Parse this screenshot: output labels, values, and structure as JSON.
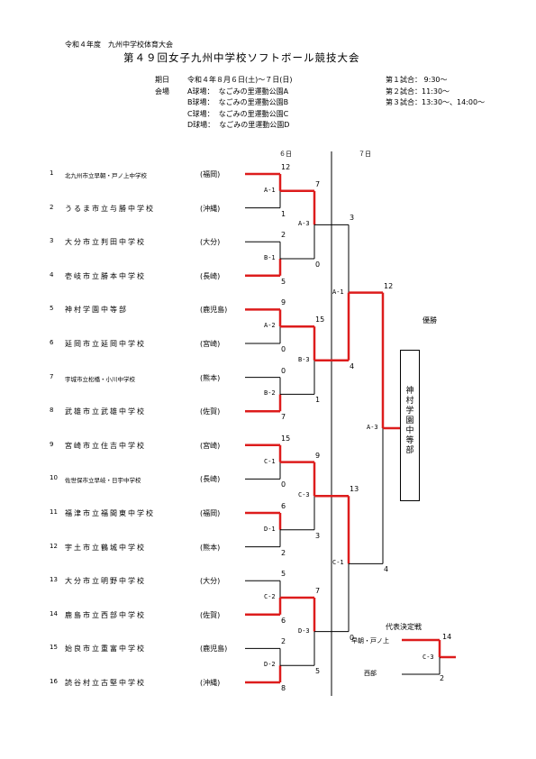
{
  "header": {
    "line1": "令和４年度　九州中学校体育大会",
    "title": "第４９回女子九州中学校ソフトボール競技大会"
  },
  "info": {
    "period_label": "期日",
    "period_value": "令和４年８月６日(土)～７日(日)",
    "venue_label": "会場",
    "venues": [
      {
        "label": "A球場：",
        "name": "なごみの里運動公園A"
      },
      {
        "label": "B球場：",
        "name": "なごみの里運動公園B"
      },
      {
        "label": "C球場：",
        "name": "なごみの里運動公園C"
      },
      {
        "label": "D球場：",
        "name": "なごみの里運動公園D"
      }
    ],
    "schedule": [
      "第１試合： 9:30～",
      "第２試合：11:30～",
      "第３試合：13:30～、14:00～"
    ]
  },
  "days": [
    "６日",
    "７日"
  ],
  "teams": [
    {
      "no": "1",
      "name": "北九州市立早朝・戸ノ上中学校",
      "pref": "(福岡)",
      "small": true
    },
    {
      "no": "2",
      "name": "うるま市立与勝中学校",
      "pref": "(沖縄)",
      "small": false
    },
    {
      "no": "3",
      "name": "大分市立判田中学校",
      "pref": "(大分)",
      "small": false
    },
    {
      "no": "4",
      "name": "壱岐市立勝本中学校",
      "pref": "(長崎)",
      "small": false
    },
    {
      "no": "5",
      "name": "神村学園中等部",
      "pref": "(鹿児島)",
      "small": false
    },
    {
      "no": "6",
      "name": "延岡市立延岡中学校",
      "pref": "(宮崎)",
      "small": false
    },
    {
      "no": "7",
      "name": "宇城市立松橋・小川中学校",
      "pref": "(熊本)",
      "small": true
    },
    {
      "no": "8",
      "name": "武雄市立武雄中学校",
      "pref": "(佐賀)",
      "small": false
    },
    {
      "no": "9",
      "name": "宮崎市立住吉中学校",
      "pref": "(宮崎)",
      "small": false
    },
    {
      "no": "10",
      "name": "佐世保市立早岐・日宇中学校",
      "pref": "(長崎)",
      "small": true
    },
    {
      "no": "11",
      "name": "福津市立福間東中学校",
      "pref": "(福岡)",
      "small": false
    },
    {
      "no": "12",
      "name": "宇土市立鶴城中学校",
      "pref": "(熊本)",
      "small": false
    },
    {
      "no": "13",
      "name": "大分市立明野中学校",
      "pref": "(大分)",
      "small": false
    },
    {
      "no": "14",
      "name": "鹿島市立西部中学校",
      "pref": "(佐賀)",
      "small": false
    },
    {
      "no": "15",
      "name": "始良市立重富中学校",
      "pref": "(鹿児島)",
      "small": false
    },
    {
      "no": "16",
      "name": "読谷村立古堅中学校",
      "pref": "(沖縄)",
      "small": false
    }
  ],
  "matches": [
    {
      "id": "r1-1",
      "label": "A-1",
      "top": 0,
      "bottom": 1,
      "top_score": "12",
      "bottom_score": "1",
      "winner": "top"
    },
    {
      "id": "r1-2",
      "label": "B-1",
      "top": 2,
      "bottom": 3,
      "top_score": "2",
      "bottom_score": "5",
      "winner": "bottom"
    },
    {
      "id": "r1-3",
      "label": "A-2",
      "top": 4,
      "bottom": 5,
      "top_score": "9",
      "bottom_score": "0",
      "winner": "top"
    },
    {
      "id": "r1-4",
      "label": "B-2",
      "top": 6,
      "bottom": 7,
      "top_score": "0",
      "bottom_score": "7",
      "winner": "bottom"
    },
    {
      "id": "r1-5",
      "label": "C-1",
      "top": 8,
      "bottom": 9,
      "top_score": "15",
      "bottom_score": "0",
      "winner": "top"
    },
    {
      "id": "r1-6",
      "label": "D-1",
      "top": 10,
      "bottom": 11,
      "top_score": "6",
      "bottom_score": "2",
      "winner": "top"
    },
    {
      "id": "r1-7",
      "label": "C-2",
      "top": 12,
      "bottom": 13,
      "top_score": "5",
      "bottom_score": "6",
      "winner": "bottom"
    },
    {
      "id": "r1-8",
      "label": "D-2",
      "top": 14,
      "bottom": 15,
      "top_score": "2",
      "bottom_score": "8",
      "winner": "bottom"
    },
    {
      "id": "r2-1",
      "label": "A-3",
      "top": "r1-1",
      "bottom": "r1-2",
      "top_score": "7",
      "bottom_score": "0",
      "winner": "top"
    },
    {
      "id": "r2-2",
      "label": "B-3",
      "top": "r1-3",
      "bottom": "r1-4",
      "top_score": "15",
      "bottom_score": "1",
      "winner": "top"
    },
    {
      "id": "r2-3",
      "label": "C-3",
      "top": "r1-5",
      "bottom": "r1-6",
      "top_score": "9",
      "bottom_score": "3",
      "winner": "top"
    },
    {
      "id": "r2-4",
      "label": "D-3",
      "top": "r1-7",
      "bottom": "r1-8",
      "top_score": "7",
      "bottom_score": "5",
      "winner": "top"
    },
    {
      "id": "r3-1",
      "label": "A-1",
      "top": "r2-1",
      "bottom": "r2-2",
      "top_score": "3",
      "bottom_score": "4",
      "winner": "bottom"
    },
    {
      "id": "r3-2",
      "label": "C-1",
      "top": "r2-3",
      "bottom": "r2-4",
      "top_score": "13",
      "bottom_score": "0",
      "winner": "top"
    },
    {
      "id": "final",
      "label": "A-3",
      "top": "r3-1",
      "bottom": "r3-2",
      "top_score": "12",
      "bottom_score": "4",
      "winner": "top"
    }
  ],
  "champion": {
    "label": "優勝",
    "team": "神村学園中等部"
  },
  "representative": {
    "label": "代表決定戦",
    "top_team": "早朝・戸ノ上",
    "bottom_team": "西部",
    "match_label": "C-3",
    "top_score": "14",
    "bottom_score": "2"
  },
  "colors": {
    "win": "#dd1c1c",
    "line": "#000000"
  }
}
